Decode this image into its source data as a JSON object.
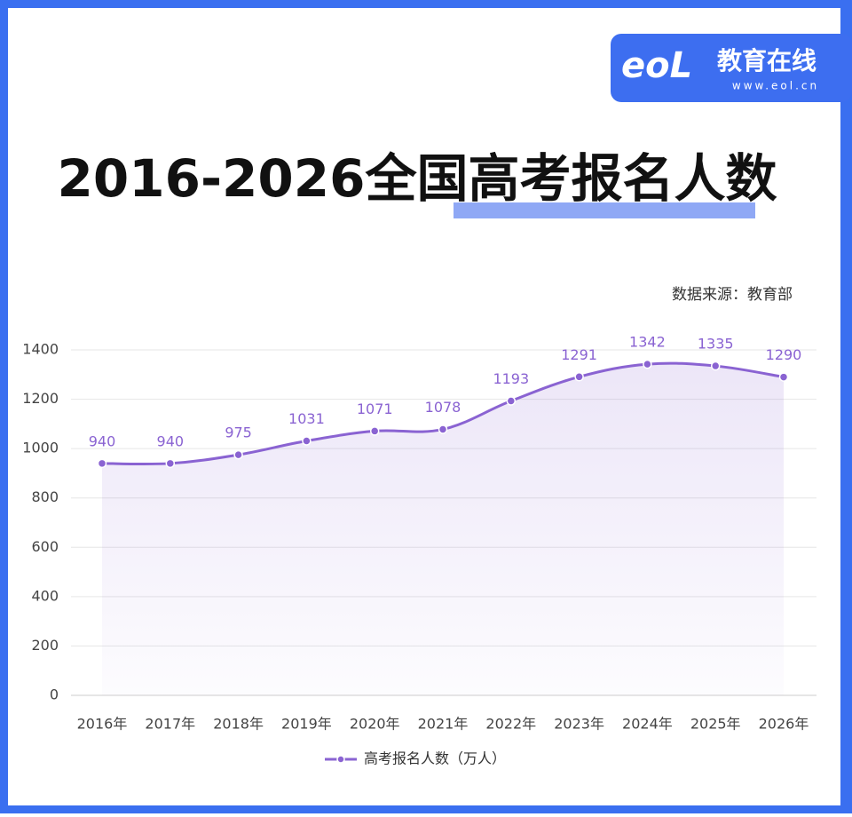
{
  "logo": {
    "mark": "eoL",
    "name": "教育在线",
    "url": "www.eol.cn"
  },
  "chart_data": {
    "type": "line",
    "title": "2016-2026全国高考报名人数",
    "source": "数据来源：教育部",
    "categories": [
      "2016年",
      "2017年",
      "2018年",
      "2019年",
      "2020年",
      "2021年",
      "2022年",
      "2023年",
      "2024年",
      "2025年",
      "2026年"
    ],
    "series": [
      {
        "name": "高考报名人数（万人）",
        "color": "#8a63d2",
        "values": [
          940,
          940,
          975,
          1031,
          1071,
          1078,
          1193,
          1291,
          1342,
          1335,
          1290
        ]
      }
    ],
    "ylim": [
      0,
      1400
    ],
    "yticks": [
      0,
      200,
      400,
      600,
      800,
      1000,
      1200,
      1400
    ],
    "grid": true
  }
}
